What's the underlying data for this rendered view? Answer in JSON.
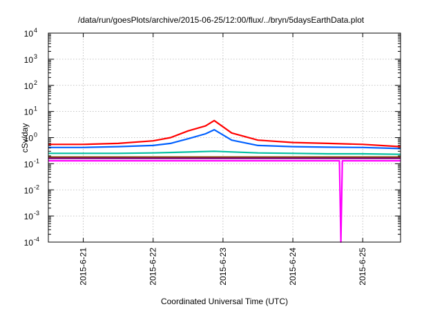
{
  "chart_data": {
    "type": "line",
    "title": "/data/run/goesPlots/archive/2015-06-25/12:00/flux/../bryn/5daysEarthData.plot",
    "xlabel": "Coordinated Universal Time (UTC)",
    "ylabel": "cSv/day",
    "x_ticks": [
      "2015-6-21",
      "2015-6-22",
      "2015-6-23",
      "2015-6-24",
      "2015-6-25"
    ],
    "x_range": [
      "2015-06-20T12:00",
      "2015-06-25T13:00"
    ],
    "yscale": "log",
    "ylim": [
      0.0001,
      10000
    ],
    "y_ticks": [
      {
        "base": "10",
        "exp": "-4"
      },
      {
        "base": "10",
        "exp": "-3"
      },
      {
        "base": "10",
        "exp": "-2"
      },
      {
        "base": "10",
        "exp": "-1"
      },
      {
        "base": "10",
        "exp": "0"
      },
      {
        "base": "10",
        "exp": "1"
      },
      {
        "base": "10",
        "exp": "2"
      },
      {
        "base": "10",
        "exp": "3"
      },
      {
        "base": "10",
        "exp": "4"
      }
    ],
    "grid": true,
    "series": [
      {
        "color": "#ff0000",
        "x": [
          "2015-06-20T12:00",
          "2015-06-21T00:00",
          "2015-06-21T12:00",
          "2015-06-22T00:00",
          "2015-06-22T06:00",
          "2015-06-22T12:00",
          "2015-06-22T18:00",
          "2015-06-22T21:00",
          "2015-06-23T03:00",
          "2015-06-23T12:00",
          "2015-06-24T00:00",
          "2015-06-24T12:00",
          "2015-06-25T00:00",
          "2015-06-25T13:00"
        ],
        "values": [
          0.55,
          0.55,
          0.6,
          0.75,
          1.0,
          1.8,
          2.8,
          4.5,
          1.5,
          0.8,
          0.65,
          0.6,
          0.55,
          0.45
        ]
      },
      {
        "color": "#0060ff",
        "x": [
          "2015-06-20T12:00",
          "2015-06-21T00:00",
          "2015-06-21T12:00",
          "2015-06-22T00:00",
          "2015-06-22T06:00",
          "2015-06-22T12:00",
          "2015-06-22T18:00",
          "2015-06-22T21:00",
          "2015-06-23T03:00",
          "2015-06-23T12:00",
          "2015-06-24T00:00",
          "2015-06-24T12:00",
          "2015-06-25T00:00",
          "2015-06-25T13:00"
        ],
        "values": [
          0.42,
          0.42,
          0.45,
          0.5,
          0.6,
          0.9,
          1.4,
          2.0,
          0.8,
          0.5,
          0.45,
          0.43,
          0.42,
          0.38
        ]
      },
      {
        "color": "#00c0a0",
        "x": [
          "2015-06-20T12:00",
          "2015-06-21T00:00",
          "2015-06-21T12:00",
          "2015-06-22T00:00",
          "2015-06-22T12:00",
          "2015-06-22T21:00",
          "2015-06-23T12:00",
          "2015-06-24T00:00",
          "2015-06-24T12:00",
          "2015-06-25T00:00",
          "2015-06-25T13:00"
        ],
        "values": [
          0.25,
          0.25,
          0.25,
          0.26,
          0.28,
          0.3,
          0.26,
          0.25,
          0.24,
          0.24,
          0.23
        ]
      },
      {
        "color": "#804000",
        "x": [
          "2015-06-20T12:00",
          "2015-06-21T12:00",
          "2015-06-22T12:00",
          "2015-06-23T12:00",
          "2015-06-24T12:00",
          "2015-06-25T13:00"
        ],
        "values": [
          0.18,
          0.18,
          0.18,
          0.18,
          0.18,
          0.18
        ]
      },
      {
        "color": "#800080",
        "x": [
          "2015-06-20T12:00",
          "2015-06-21T12:00",
          "2015-06-22T12:00",
          "2015-06-23T12:00",
          "2015-06-24T12:00",
          "2015-06-25T13:00"
        ],
        "values": [
          0.16,
          0.16,
          0.16,
          0.16,
          0.16,
          0.16
        ]
      },
      {
        "color": "#ff00ff",
        "x": [
          "2015-06-20T12:00",
          "2015-06-21T12:00",
          "2015-06-22T12:00",
          "2015-06-23T12:00",
          "2015-06-24T12:00",
          "2015-06-24T16:00",
          "2015-06-24T16:30",
          "2015-06-24T17:00",
          "2015-06-25T00:00",
          "2015-06-25T13:00"
        ],
        "values": [
          0.13,
          0.13,
          0.13,
          0.13,
          0.13,
          0.13,
          0.0001,
          0.13,
          0.13,
          0.13
        ]
      }
    ]
  }
}
